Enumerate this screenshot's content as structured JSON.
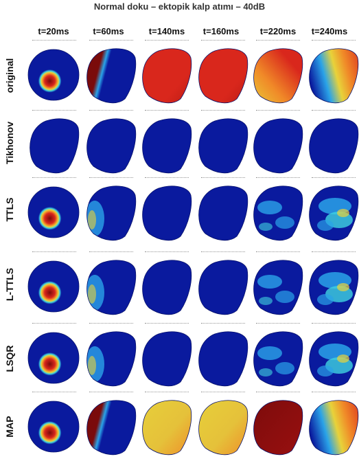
{
  "title": "Normal doku – ektopik kalp atımı – 40dB",
  "columns": [
    "t=20ms",
    "t=60ms",
    "t=140ms",
    "t=160ms",
    "t=220ms",
    "t=240ms"
  ],
  "rows": [
    {
      "label": "original",
      "cells": [
        "focus-red",
        "split-red-blue",
        "full-red",
        "full-red",
        "gradient-orange",
        "blue-to-red"
      ]
    },
    {
      "label": "Tikhonov",
      "cells": [
        "blue",
        "blue",
        "blue",
        "blue",
        "blue",
        "blue"
      ]
    },
    {
      "label": "TTLS",
      "cells": [
        "focus-red",
        "blue-lightedge",
        "blue",
        "blue",
        "blue-patchy",
        "blue-patchy-strong"
      ]
    },
    {
      "label": "L-TTLS",
      "cells": [
        "focus-red",
        "blue-lightedge",
        "blue",
        "blue",
        "blue-patchy",
        "blue-patchy-strong"
      ]
    },
    {
      "label": "LSQR",
      "cells": [
        "focus-red",
        "blue-lightedge",
        "blue",
        "blue",
        "blue-patchy",
        "blue-patchy-strong"
      ]
    },
    {
      "label": "MAP",
      "cells": [
        "focus-red",
        "split-red-blue",
        "full-yellow",
        "full-yellow",
        "full-darkred",
        "blue-to-red"
      ]
    }
  ],
  "colors": {
    "blue": "#0a1a9e",
    "light_blue": "#2aa3e8",
    "cyan": "#3fd3e0",
    "yellow": "#e8d23a",
    "orange": "#f08a28",
    "red": "#d9271c",
    "dark_red": "#7a0b0b"
  }
}
